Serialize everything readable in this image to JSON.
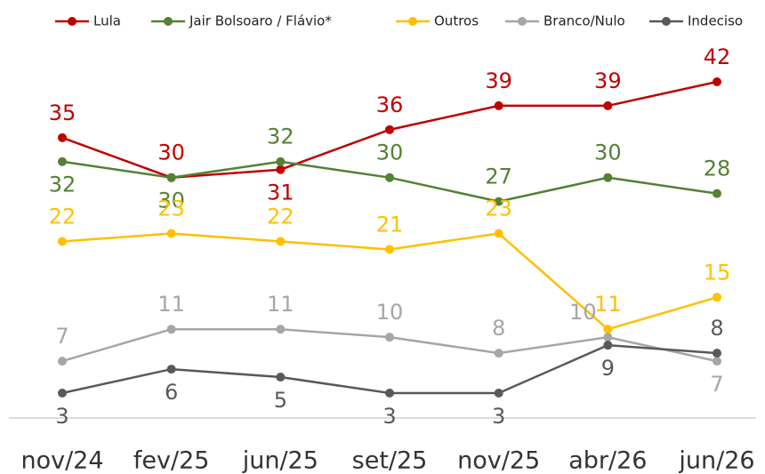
{
  "chart_data": {
    "type": "line",
    "legend": "top",
    "categories": [
      "nov/24",
      "fev/25",
      "jun/25",
      "set/25",
      "nov/25",
      "abr/26",
      "jun/26"
    ],
    "series": [
      {
        "name": "Lula",
        "color": "#c00000",
        "values": [
          35,
          30,
          31,
          36,
          39,
          39,
          42
        ]
      },
      {
        "name": "Jair Bolsoaro / Flávio*",
        "color": "#538135",
        "values": [
          32,
          30,
          32,
          30,
          27,
          30,
          28
        ]
      },
      {
        "name": "Outros",
        "color": "#ffc000",
        "values": [
          22,
          23,
          22,
          21,
          23,
          11,
          15
        ]
      },
      {
        "name": "Branco/Nulo",
        "color": "#a6a6a6",
        "values": [
          7,
          11,
          11,
          10,
          8,
          10,
          7
        ]
      },
      {
        "name": "Indeciso",
        "color": "#595959",
        "values": [
          3,
          6,
          5,
          3,
          3,
          9,
          8
        ]
      }
    ]
  }
}
